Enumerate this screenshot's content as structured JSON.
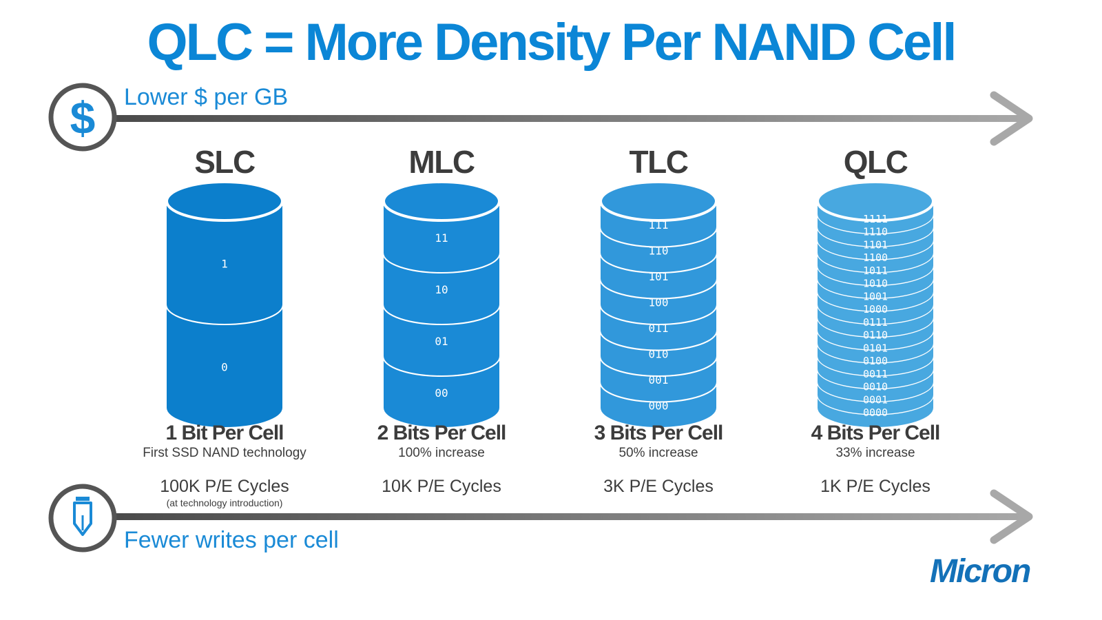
{
  "title": "QLC = More Density Per NAND Cell",
  "cost_axis": {
    "label": "Lower $ per GB",
    "icon": "dollar-icon"
  },
  "writes_axis": {
    "label": "Fewer writes per cell",
    "icon": "pencil-icon"
  },
  "colors": {
    "title": "#0b86d6",
    "arrow": "#8a8a8a",
    "icon_ring": "#555555",
    "icon_blue": "#1a8ad6",
    "text": "#3c3c3c",
    "slc": "#0c7fcc",
    "mlc": "#1a8ad6",
    "tlc": "#3198db",
    "qlc": "#48a8e0"
  },
  "cell_types": [
    {
      "name": "SLC",
      "bits_label": "1 Bit Per Cell",
      "description": "First SSD NAND technology",
      "cycles": "100K P/E Cycles",
      "cycles_note": "(at technology introduction)",
      "states": [
        "1",
        "0"
      ]
    },
    {
      "name": "MLC",
      "bits_label": "2 Bits Per Cell",
      "description": "100% increase",
      "cycles": "10K P/E Cycles",
      "states": [
        "11",
        "10",
        "01",
        "00"
      ]
    },
    {
      "name": "TLC",
      "bits_label": "3 Bits Per Cell",
      "description": "50% increase",
      "cycles": "3K P/E Cycles",
      "states": [
        "111",
        "110",
        "101",
        "100",
        "011",
        "010",
        "001",
        "000"
      ]
    },
    {
      "name": "QLC",
      "bits_label": "4 Bits Per Cell",
      "description": "33% increase",
      "cycles": "1K P/E Cycles",
      "states": [
        "1111",
        "1110",
        "1101",
        "1100",
        "1011",
        "1010",
        "1001",
        "1000",
        "0111",
        "0110",
        "0101",
        "0100",
        "0011",
        "0010",
        "0001",
        "0000"
      ]
    }
  ],
  "logo": {
    "text": "Micron"
  }
}
